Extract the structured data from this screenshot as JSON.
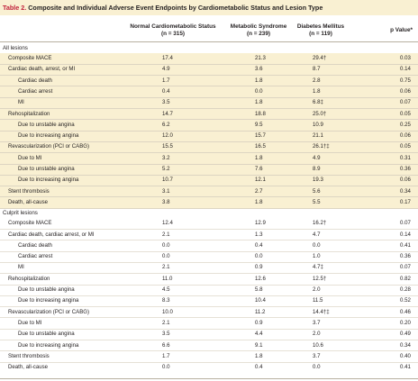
{
  "title": {
    "label": "Table 2.",
    "text": "Composite and Individual Adverse Event Endpoints by Cardiometabolic Status and Lesion Type"
  },
  "columns": [
    {
      "name": "Normal Cardiometabolic Status",
      "n": "(n = 315)"
    },
    {
      "name": "Metabolic Syndrome",
      "n": "(n = 239)"
    },
    {
      "name": "Diabetes Mellitus",
      "n": "(n = 119)"
    },
    {
      "name": "p Value*",
      "n": ""
    }
  ],
  "sections": [
    {
      "heading": "All lesions",
      "rows": [
        {
          "label": "Composite MACE",
          "indent": 1,
          "values": [
            "17.4",
            "21.3",
            "29.4†",
            "0.03"
          ]
        },
        {
          "label": "Cardiac death, arrest, or MI",
          "indent": 1,
          "values": [
            "4.9",
            "3.6",
            "8.7",
            "0.14"
          ]
        },
        {
          "label": "Cardiac death",
          "indent": 2,
          "values": [
            "1.7",
            "1.8",
            "2.8",
            "0.75"
          ]
        },
        {
          "label": "Cardiac arrest",
          "indent": 2,
          "values": [
            "0.4",
            "0.0",
            "1.8",
            "0.06"
          ]
        },
        {
          "label": "MI",
          "indent": 2,
          "values": [
            "3.5",
            "1.8",
            "6.8‡",
            "0.07"
          ]
        },
        {
          "label": "Rehospitalization",
          "indent": 1,
          "values": [
            "14.7",
            "18.8",
            "25.0†",
            "0.05"
          ]
        },
        {
          "label": "Due to unstable angina",
          "indent": 2,
          "values": [
            "6.2",
            "9.5",
            "10.9",
            "0.25"
          ]
        },
        {
          "label": "Due to increasing angina",
          "indent": 2,
          "values": [
            "12.0",
            "15.7",
            "21.1",
            "0.06"
          ]
        },
        {
          "label": "Revascularization (PCI or CABG)",
          "indent": 1,
          "values": [
            "15.5",
            "16.5",
            "26.1†‡",
            "0.05"
          ]
        },
        {
          "label": "Due to MI",
          "indent": 2,
          "values": [
            "3.2",
            "1.8",
            "4.9",
            "0.31"
          ]
        },
        {
          "label": "Due to unstable angina",
          "indent": 2,
          "values": [
            "5.2",
            "7.6",
            "8.9",
            "0.36"
          ]
        },
        {
          "label": "Due to increasing angina",
          "indent": 2,
          "values": [
            "10.7",
            "12.1",
            "19.3",
            "0.06"
          ]
        },
        {
          "label": "Stent thrombosis",
          "indent": 1,
          "values": [
            "3.1",
            "2.7",
            "5.6",
            "0.34"
          ]
        },
        {
          "label": "Death, all-cause",
          "indent": 1,
          "values": [
            "3.8",
            "1.8",
            "5.5",
            "0.17"
          ]
        }
      ]
    },
    {
      "heading": "Culprit lesions",
      "rows": [
        {
          "label": "Composite MACE",
          "indent": 1,
          "values": [
            "12.4",
            "12.9",
            "16.2†",
            "0.07"
          ]
        },
        {
          "label": "Cardiac death, cardiac arrest, or MI",
          "indent": 1,
          "values": [
            "2.1",
            "1.3",
            "4.7",
            "0.14"
          ]
        },
        {
          "label": "Cardiac death",
          "indent": 2,
          "values": [
            "0.0",
            "0.4",
            "0.0",
            "0.41"
          ]
        },
        {
          "label": "Cardiac arrest",
          "indent": 2,
          "values": [
            "0.0",
            "0.0",
            "1.0",
            "0.36"
          ]
        },
        {
          "label": "MI",
          "indent": 2,
          "values": [
            "2.1",
            "0.9",
            "4.7‡",
            "0.07"
          ]
        },
        {
          "label": "Rehospitalization",
          "indent": 1,
          "values": [
            "11.0",
            "12.6",
            "12.5†",
            "0.82"
          ]
        },
        {
          "label": "Due to unstable angina",
          "indent": 2,
          "values": [
            "4.5",
            "5.8",
            "2.0",
            "0.28"
          ]
        },
        {
          "label": "Due to increasing angina",
          "indent": 2,
          "values": [
            "8.3",
            "10.4",
            "11.5",
            "0.52"
          ]
        },
        {
          "label": "Revascularization (PCI or CABG)",
          "indent": 1,
          "values": [
            "10.0",
            "11.2",
            "14.4†‡",
            "0.46"
          ]
        },
        {
          "label": "Due to MI",
          "indent": 2,
          "values": [
            "2.1",
            "0.9",
            "3.7",
            "0.20"
          ]
        },
        {
          "label": "Due to unstable angina",
          "indent": 2,
          "values": [
            "3.5",
            "4.4",
            "2.0",
            "0.49"
          ]
        },
        {
          "label": "Due to increasing angina",
          "indent": 2,
          "values": [
            "6.6",
            "9.1",
            "10.6",
            "0.34"
          ]
        },
        {
          "label": "Stent thrombosis",
          "indent": 1,
          "values": [
            "1.7",
            "1.8",
            "3.7",
            "0.40"
          ]
        },
        {
          "label": "Death, all-cause",
          "indent": 1,
          "values": [
            "0.0",
            "0.4",
            "0.0",
            "0.41"
          ]
        }
      ]
    }
  ]
}
